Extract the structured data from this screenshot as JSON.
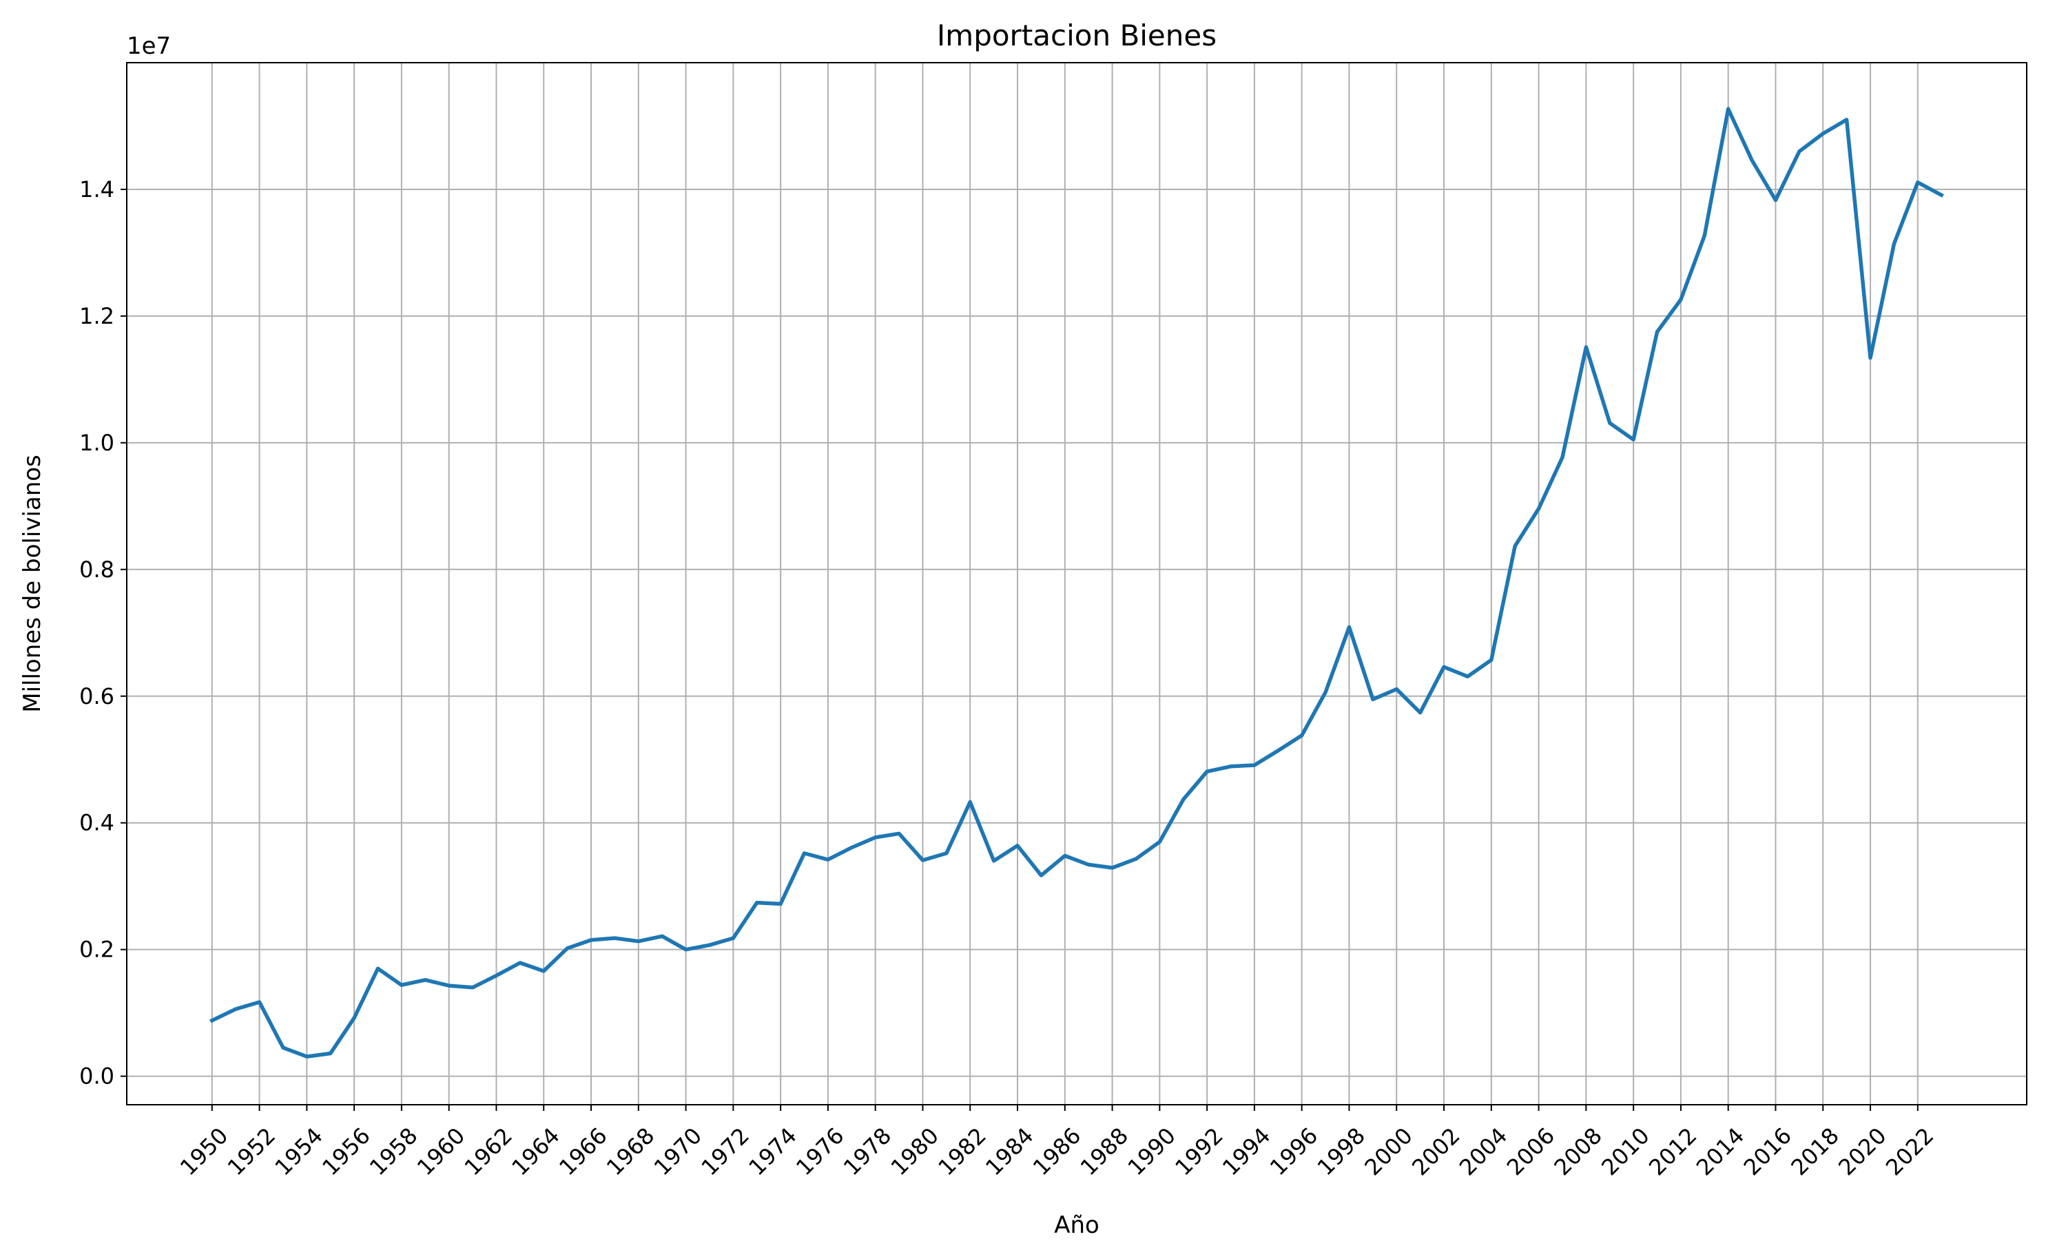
{
  "chart_data": {
    "type": "line",
    "title": "Importacion Bienes",
    "xlabel": "Año",
    "ylabel": "Millones de bolivianos",
    "y_offset_label": "1e7",
    "grid": true,
    "line_color": "#1f77b4",
    "xlim": [
      1946.4,
      2026.6
    ],
    "ylim": [
      -0.045,
      1.6
    ],
    "x_ticks": [
      1950,
      1952,
      1954,
      1956,
      1958,
      1960,
      1962,
      1964,
      1966,
      1968,
      1970,
      1972,
      1974,
      1976,
      1978,
      1980,
      1982,
      1984,
      1986,
      1988,
      1990,
      1992,
      1994,
      1996,
      1998,
      2000,
      2002,
      2004,
      2006,
      2008,
      2010,
      2012,
      2014,
      2016,
      2018,
      2020,
      2022
    ],
    "y_ticks": [
      0.0,
      0.2,
      0.4,
      0.6,
      0.8,
      1.0,
      1.2,
      1.4
    ],
    "y_tick_labels": [
      "0.0",
      "0.2",
      "0.4",
      "0.6",
      "0.8",
      "1.0",
      "1.2",
      "1.4"
    ],
    "series": [
      {
        "x": [
          1950,
          1951,
          1952,
          1953,
          1954,
          1955,
          1956,
          1957,
          1958,
          1959,
          1960,
          1961,
          1962,
          1963,
          1964,
          1965,
          1966,
          1967,
          1968,
          1969,
          1970,
          1971,
          1972,
          1973,
          1974,
          1975,
          1976,
          1977,
          1978,
          1979,
          1980,
          1981,
          1982,
          1983,
          1984,
          1985,
          1986,
          1987,
          1988,
          1989,
          1990,
          1991,
          1992,
          1993,
          1994,
          1995,
          1996,
          1997,
          1998,
          1999,
          2000,
          2001,
          2002,
          2003,
          2004,
          2005,
          2006,
          2007,
          2008,
          2009,
          2010,
          2011,
          2012,
          2013,
          2014,
          2015,
          2016,
          2017,
          2018,
          2019,
          2020,
          2021,
          2022,
          2023
        ],
        "values": [
          0.088,
          0.106,
          0.117,
          0.045,
          0.031,
          0.036,
          0.092,
          0.17,
          0.144,
          0.152,
          0.143,
          0.14,
          0.159,
          0.179,
          0.166,
          0.202,
          0.215,
          0.218,
          0.213,
          0.221,
          0.2,
          0.207,
          0.218,
          0.274,
          0.272,
          0.352,
          0.342,
          0.361,
          0.377,
          0.383,
          0.341,
          0.352,
          0.433,
          0.34,
          0.364,
          0.317,
          0.348,
          0.334,
          0.329,
          0.343,
          0.37,
          0.437,
          0.481,
          0.489,
          0.491,
          0.514,
          0.538,
          0.606,
          0.709,
          0.595,
          0.611,
          0.574,
          0.646,
          0.631,
          0.657,
          0.837,
          0.896,
          0.977,
          1.151,
          1.031,
          1.005,
          1.175,
          1.226,
          1.327,
          1.527,
          1.446,
          1.383,
          1.46,
          1.488,
          1.51,
          1.134,
          1.314,
          1.411,
          1.391
        ]
      }
    ]
  }
}
